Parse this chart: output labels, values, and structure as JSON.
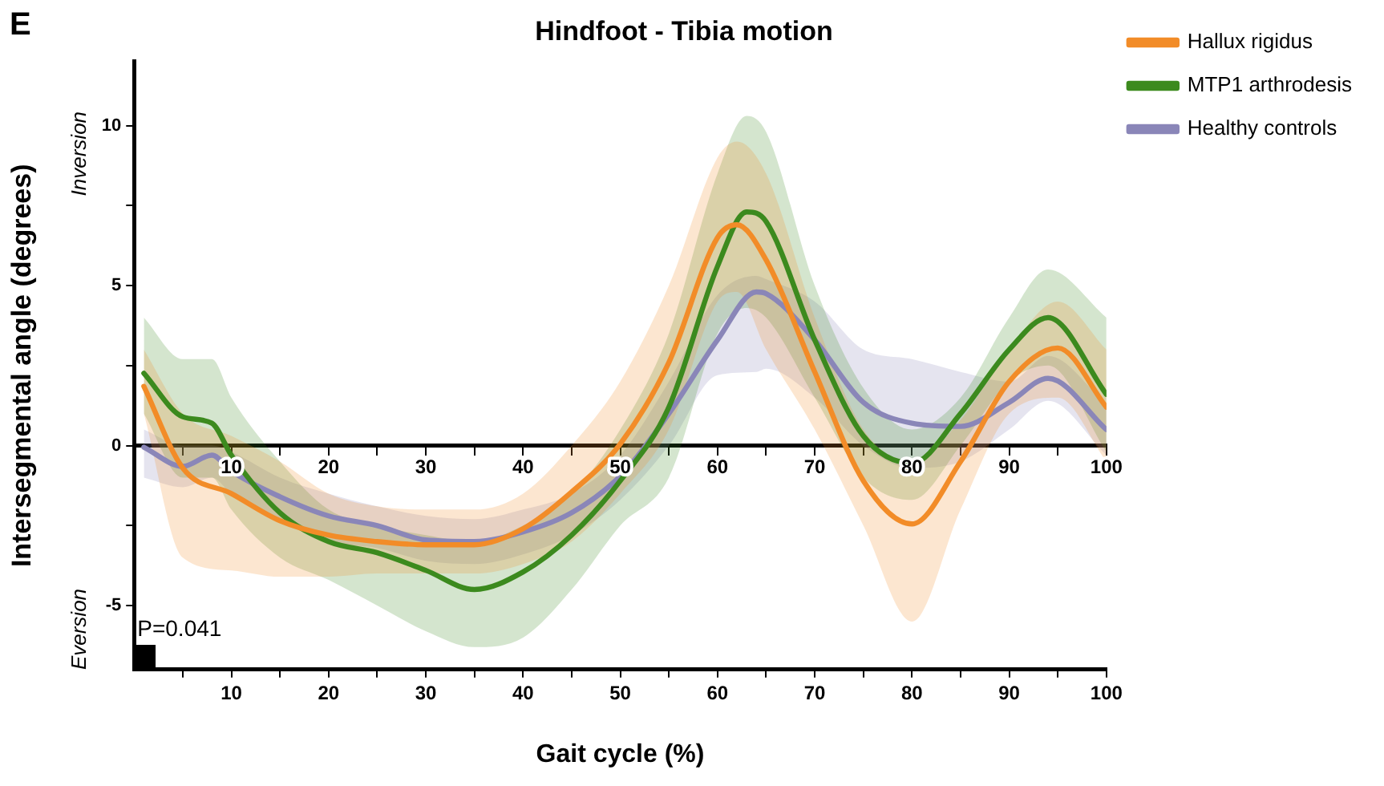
{
  "chart_data": {
    "type": "line",
    "title": "Hindfoot - Tibia motion",
    "xlabel": "Gait cycle (%)",
    "ylabel": "Intersegmental angle (degrees)",
    "annotations": [
      "E",
      "Inversion",
      "Eversion",
      "P=0.041"
    ],
    "xlim": [
      0,
      100
    ],
    "xticks": [
      {
        "value": 5,
        "label": null
      },
      10,
      {
        "value": 15,
        "label": null
      },
      20,
      {
        "value": 25,
        "label": null
      },
      30,
      {
        "value": 35,
        "label": null
      },
      40,
      {
        "value": 45,
        "label": null
      },
      50,
      {
        "value": 55,
        "label": null
      },
      60,
      {
        "value": 65,
        "label": null
      },
      70,
      {
        "value": 75,
        "label": null
      },
      80,
      {
        "value": 85,
        "label": null
      },
      90,
      {
        "value": 95,
        "label": null
      },
      100
    ],
    "x2lim": [
      0,
      100
    ],
    "x2ticks": [
      {
        "value": 5,
        "label": null
      },
      10,
      {
        "value": 15,
        "label": null
      },
      20,
      {
        "value": 25,
        "label": null
      },
      30,
      {
        "value": 35,
        "label": null
      },
      40,
      {
        "value": 45,
        "label": null
      },
      50,
      {
        "value": 55,
        "label": null
      },
      60,
      {
        "value": 65,
        "label": null
      },
      70,
      {
        "value": 75,
        "label": null
      },
      80,
      {
        "value": 85,
        "label": null
      },
      90,
      {
        "value": 95,
        "label": null
      },
      100
    ],
    "ylim": [
      -7,
      12
    ],
    "yticks": [
      -5,
      {
        "value": -2.5,
        "label": null
      },
      0,
      {
        "value": 2.5,
        "label": null
      },
      5,
      {
        "value": 7.5,
        "label": null
      },
      10
    ],
    "grid": false,
    "legend": "top right",
    "marker": "none",
    "line_style": "solid",
    "series": [
      {
        "name": "Hallux rigidus",
        "color": "#f28c28",
        "x": [
          1,
          5,
          10,
          15,
          20,
          25,
          30,
          35,
          40,
          45,
          50,
          55,
          60,
          62,
          65,
          70,
          75,
          80,
          85,
          90,
          95,
          100
        ],
        "values": [
          1.85,
          -0.7,
          -1.5,
          -2.35,
          -2.8,
          -3.0,
          -3.1,
          -3.1,
          -2.6,
          -1.45,
          0.05,
          2.6,
          6.5,
          6.9,
          5.8,
          2.3,
          -1.1,
          -2.45,
          -0.5,
          2.0,
          3.05,
          1.2
        ],
        "upper": [
          3.0,
          1.0,
          0.3,
          -0.5,
          -1.5,
          -1.9,
          -2.0,
          -2.0,
          -1.5,
          0.0,
          2.0,
          5.0,
          9.0,
          9.5,
          8.5,
          4.0,
          0.5,
          -0.5,
          0.8,
          3.0,
          4.5,
          3.0
        ],
        "lower": [
          1.0,
          -3.5,
          -3.9,
          -4.1,
          -4.1,
          -4.0,
          -4.0,
          -4.0,
          -3.7,
          -3.0,
          -1.5,
          0.5,
          4.5,
          4.8,
          3.0,
          0.5,
          -2.5,
          -5.5,
          -2.0,
          1.0,
          1.5,
          -0.5
        ]
      },
      {
        "name": "MTP1 arthrodesis",
        "color": "#3c8a1e",
        "x": [
          1,
          5,
          8,
          10,
          15,
          20,
          25,
          30,
          35,
          40,
          45,
          50,
          55,
          60,
          63,
          65,
          70,
          75,
          80,
          85,
          90,
          94,
          100
        ],
        "values": [
          2.26,
          0.9,
          0.7,
          -0.3,
          -2.1,
          -3.0,
          -3.35,
          -3.9,
          -4.5,
          -3.95,
          -2.8,
          -1.1,
          1.2,
          5.6,
          7.3,
          7.0,
          3.3,
          0.3,
          -0.55,
          1.0,
          3.0,
          4.0,
          1.6
        ],
        "upper": [
          4.0,
          2.7,
          2.7,
          1.5,
          -0.5,
          -2.0,
          -2.5,
          -2.8,
          -3.0,
          -2.5,
          -1.5,
          0.5,
          3.5,
          8.5,
          10.3,
          9.8,
          5.0,
          1.8,
          0.5,
          1.5,
          4.0,
          5.5,
          4.0
        ],
        "lower": [
          1.0,
          -1.0,
          -1.0,
          -2.0,
          -3.5,
          -4.2,
          -5.0,
          -5.8,
          -6.3,
          -6.0,
          -4.5,
          -2.5,
          -1.0,
          3.5,
          4.3,
          4.0,
          1.5,
          -1.0,
          -1.7,
          0.0,
          2.0,
          2.5,
          -0.2
        ]
      },
      {
        "name": "Healthy controls",
        "color": "#8a86b8",
        "x": [
          1,
          5,
          8,
          10,
          15,
          20,
          25,
          30,
          35,
          40,
          45,
          50,
          55,
          60,
          64,
          65,
          70,
          75,
          80,
          85,
          90,
          94,
          100
        ],
        "values": [
          -0.05,
          -0.65,
          -0.3,
          -0.8,
          -1.6,
          -2.2,
          -2.5,
          -2.95,
          -3.0,
          -2.7,
          -2.1,
          -0.95,
          1.0,
          3.3,
          4.8,
          4.75,
          3.3,
          1.35,
          0.7,
          0.6,
          1.35,
          2.1,
          0.5
        ],
        "upper": [
          0.5,
          0.0,
          0.0,
          -0.2,
          -1.0,
          -1.5,
          -1.9,
          -2.2,
          -2.3,
          -2.0,
          -1.5,
          -0.3,
          2.0,
          4.7,
          5.3,
          5.2,
          4.5,
          3.0,
          2.7,
          2.3,
          2.0,
          2.8,
          1.3
        ],
        "lower": [
          -1.0,
          -1.3,
          -1.0,
          -1.5,
          -2.3,
          -3.0,
          -3.2,
          -3.6,
          -3.7,
          -3.4,
          -2.8,
          -1.7,
          0.0,
          2.2,
          2.3,
          2.4,
          1.5,
          0.0,
          -0.7,
          -0.5,
          0.5,
          1.4,
          -0.3
        ]
      }
    ]
  }
}
